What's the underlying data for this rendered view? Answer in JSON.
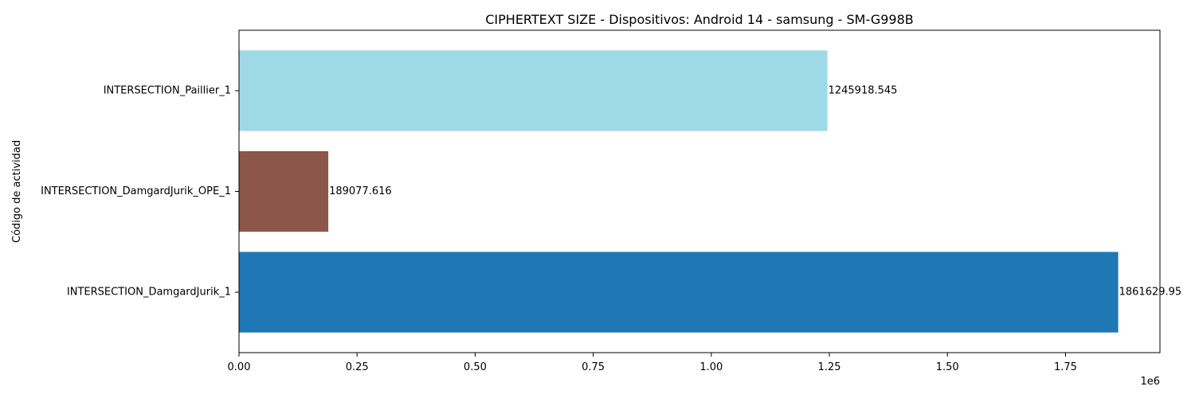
{
  "chart_data": {
    "type": "bar",
    "orientation": "horizontal",
    "title": "CIPHERTEXT SIZE - Dispositivos: Android 14 - samsung - SM-G998B",
    "xlabel": "",
    "ylabel": "Código de actividad",
    "x_offset_text": "1e6",
    "xlim": [
      0,
      1950000
    ],
    "x_ticks": [
      0,
      250000,
      500000,
      750000,
      1000000,
      1250000,
      1500000,
      1750000
    ],
    "x_tick_labels": [
      "0.00",
      "0.25",
      "0.50",
      "0.75",
      "1.00",
      "1.25",
      "1.50",
      "1.75"
    ],
    "categories": [
      "INTERSECTION_DamgardJurik_1",
      "INTERSECTION_DamgardJurik_OPE_1",
      "INTERSECTION_Paillier_1"
    ],
    "values": [
      1861629.95,
      189077.616,
      1245918.545
    ],
    "value_labels": [
      "1861629.95",
      "189077.616",
      "1245918.545"
    ],
    "colors": [
      "#1f77b4",
      "#8c564b",
      "#9edae5"
    ],
    "grid": false,
    "legend": "none"
  }
}
